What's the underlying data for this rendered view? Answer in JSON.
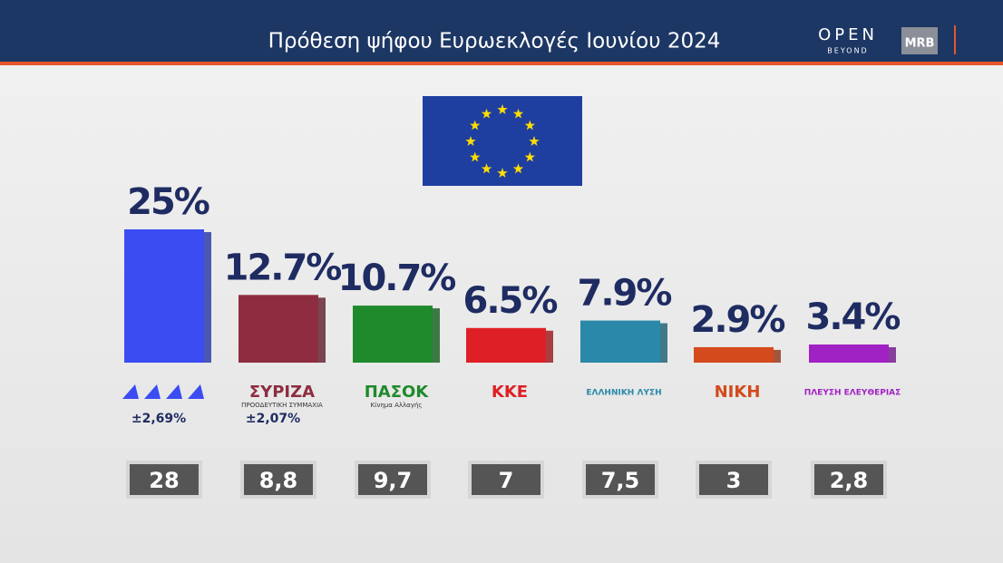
{
  "header": {
    "title": "Πρόθεση ψήφου Ευρωεκλογές Ιουνίου 2024",
    "brand": "OPEN",
    "brand_sub": "BEYOND",
    "pollster": "MRB"
  },
  "chart_data": {
    "type": "bar",
    "categories": [
      null,
      "ΣΥΡΙΖΑ",
      "ΠΑΣΟΚ",
      "ΚΚΕ",
      "ΕΛΛΗΝΙΚΗ ΛΥΣΗ",
      "ΝΙΚΗ",
      "ΠΛΕΥΣΗ ΕΛΕΥΘΕΡΙΑΣ"
    ],
    "category_subtitles": [
      null,
      "ΠΡΟΟΔΕΥΤΙΚΗ ΣΥΜΜΑΧΙΑ",
      "Κίνημα Αλλαγής",
      null,
      null,
      null,
      null
    ],
    "values": [
      25,
      12.7,
      10.7,
      6.5,
      7.9,
      2.9,
      3.4
    ],
    "value_labels": [
      "25%",
      "12.7%",
      "10.7%",
      "6.5%",
      "7.9%",
      "2.9%",
      "3.4%"
    ],
    "colors": [
      "#3a4cf2",
      "#8e2d40",
      "#1f8a2c",
      "#de2026",
      "#2a88a8",
      "#d44a1c",
      "#a022c4"
    ],
    "margins": [
      {
        "value": 2.69,
        "label": "±2,69%"
      },
      {
        "value": 2.07,
        "label": "±2,07%"
      },
      null,
      null,
      null,
      null,
      null
    ],
    "previous": [
      28,
      {
        "value": 8.8,
        "label": "8,8"
      },
      {
        "value": 9.7,
        "label": "9,7"
      },
      7,
      {
        "value": 7.5,
        "label": "7,5"
      },
      3,
      {
        "value": 2.8,
        "label": "2,8"
      }
    ]
  }
}
